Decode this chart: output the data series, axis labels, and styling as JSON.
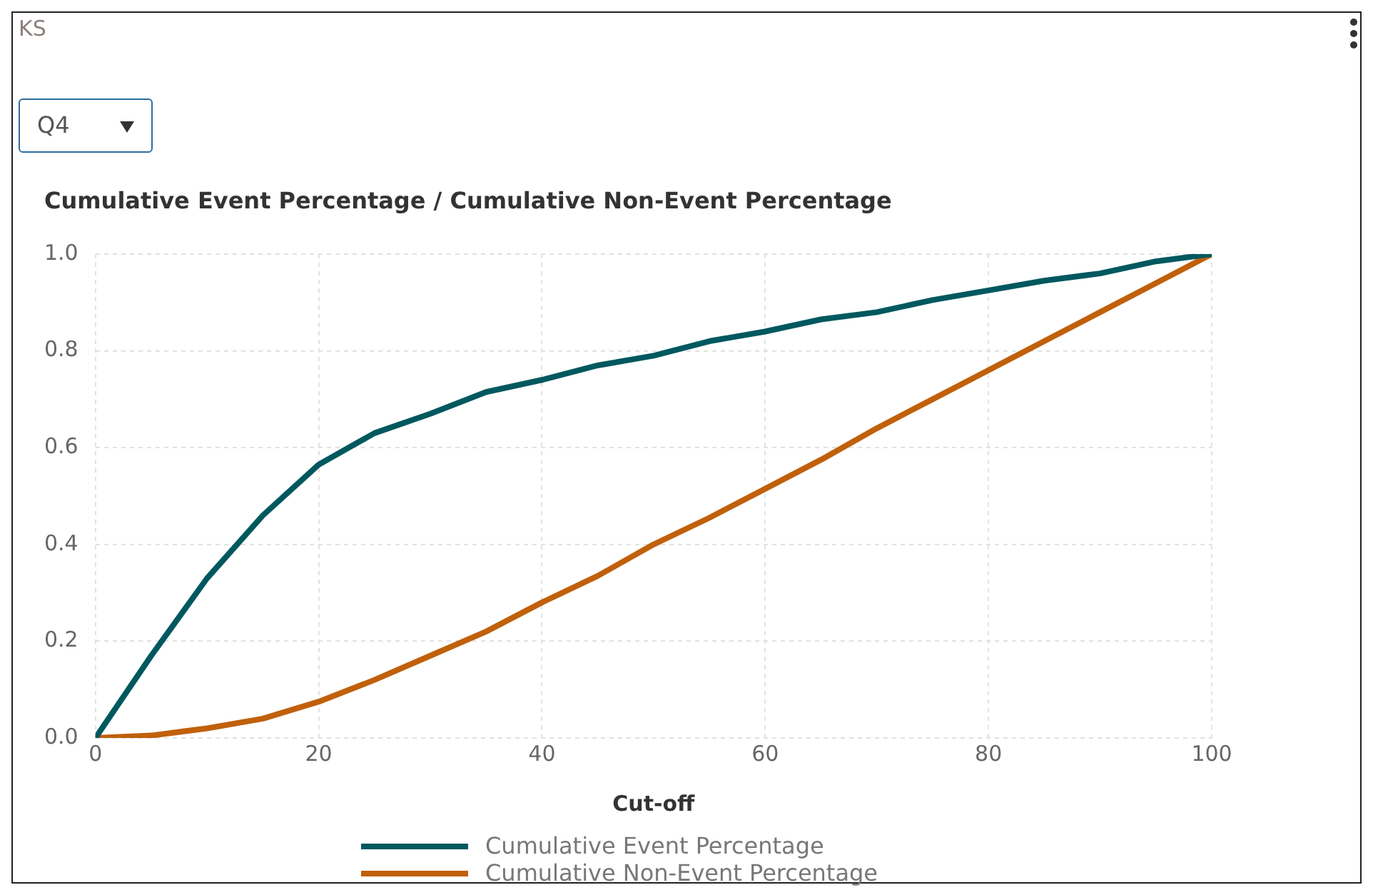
{
  "chart_data": {
    "type": "line",
    "title": "KS",
    "subtitle": "Q4",
    "ylabel": "Cumulative Event Percentage / Cumulative Non-Event Percentage",
    "xlabel": "Cut-off",
    "x": [
      0,
      5,
      10,
      15,
      20,
      25,
      30,
      35,
      40,
      45,
      50,
      55,
      60,
      65,
      70,
      75,
      80,
      85,
      90,
      95,
      100
    ],
    "series": [
      {
        "name": "Cumulative Event Percentage",
        "color": "#00585f",
        "values": [
          0,
          0.17,
          0.33,
          0.46,
          0.565,
          0.63,
          0.67,
          0.715,
          0.74,
          0.77,
          0.79,
          0.82,
          0.84,
          0.865,
          0.88,
          0.905,
          0.925,
          0.945,
          0.96,
          0.985,
          1.0
        ]
      },
      {
        "name": "Cumulative Non-Event Percentage",
        "color": "#c0600a",
        "values": [
          0,
          0.005,
          0.02,
          0.04,
          0.075,
          0.12,
          0.17,
          0.22,
          0.28,
          0.335,
          0.4,
          0.455,
          0.515,
          0.575,
          0.64,
          0.7,
          0.76,
          0.82,
          0.88,
          0.94,
          1.0
        ]
      }
    ],
    "xlim": [
      0,
      100
    ],
    "xticks": [
      0,
      20,
      40,
      60,
      80,
      100
    ],
    "ylim": [
      0,
      1
    ],
    "yticks": [
      {
        "value": 0,
        "label": "0.0"
      },
      {
        "value": 0.2,
        "label": "0.2"
      },
      {
        "value": 0.4,
        "label": "0.4"
      },
      {
        "value": 0.6,
        "label": "0.6"
      },
      {
        "value": 0.8,
        "label": "0.8"
      },
      {
        "value": 1,
        "label": "1.0"
      }
    ],
    "grid": true,
    "legend": "bottom",
    "marker": "none",
    "line_style": "solid"
  }
}
